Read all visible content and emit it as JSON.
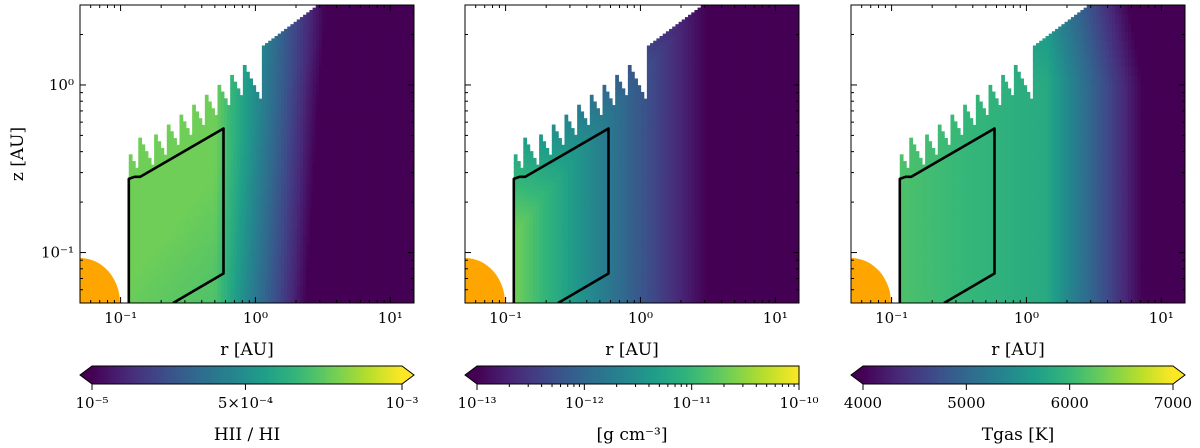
{
  "colors": {
    "star": "#ffa500",
    "contour": "#000000",
    "background": "#ffffff"
  },
  "chart_data": [
    {
      "type": "heatmap",
      "quantity": "ionization",
      "title": "",
      "xlabel": "r [AU]",
      "ylabel": "z [AU]",
      "xscale": "log",
      "yscale": "log",
      "xlim": [
        0.05,
        15
      ],
      "ylim": [
        0.05,
        3
      ],
      "xticks": [
        {
          "v": 0.1,
          "label": "10⁻¹"
        },
        {
          "v": 1,
          "label": "10⁰"
        },
        {
          "v": 10,
          "label": "10¹"
        }
      ],
      "yticks": [
        {
          "v": 0.1,
          "label": "10⁻¹"
        },
        {
          "v": 1,
          "label": "10⁰"
        }
      ],
      "colorbar": {
        "label": "HII / HI",
        "scale": "linear",
        "range": [
          1e-05,
          0.001
        ],
        "extend": "both",
        "ticks": [
          {
            "v": 1e-05,
            "label": "10⁻⁵"
          },
          {
            "v": 0.0005,
            "label": "5×10⁻⁴"
          },
          {
            "v": 0.001,
            "label": "10⁻³"
          }
        ]
      }
    },
    {
      "type": "heatmap",
      "quantity": "density",
      "title": "",
      "xlabel": "r [AU]",
      "ylabel": "",
      "xscale": "log",
      "yscale": "log",
      "xlim": [
        0.05,
        15
      ],
      "ylim": [
        0.05,
        3
      ],
      "xticks": [
        {
          "v": 0.1,
          "label": "10⁻¹"
        },
        {
          "v": 1,
          "label": "10⁰"
        },
        {
          "v": 10,
          "label": "10¹"
        }
      ],
      "yticks": [],
      "colorbar": {
        "label": "[g cm⁻³]",
        "scale": "log",
        "range": [
          1e-13,
          1e-10
        ],
        "extend": "min",
        "ticks": [
          {
            "v": 1e-13,
            "label": "10⁻¹³"
          },
          {
            "v": 1e-12,
            "label": "10⁻¹²"
          },
          {
            "v": 1e-11,
            "label": "10⁻¹¹"
          },
          {
            "v": 1e-10,
            "label": "10⁻¹⁰"
          }
        ]
      }
    },
    {
      "type": "heatmap",
      "quantity": "temperature",
      "title": "",
      "xlabel": "r [AU]",
      "ylabel": "",
      "xscale": "log",
      "yscale": "log",
      "xlim": [
        0.05,
        15
      ],
      "ylim": [
        0.05,
        3
      ],
      "xticks": [
        {
          "v": 0.1,
          "label": "10⁻¹"
        },
        {
          "v": 1,
          "label": "10⁰"
        },
        {
          "v": 10,
          "label": "10¹"
        }
      ],
      "yticks": [],
      "colorbar": {
        "label": "Tgas [K]",
        "scale": "linear",
        "range": [
          4000,
          7000
        ],
        "extend": "both",
        "ticks": [
          {
            "v": 4000,
            "label": "4000"
          },
          {
            "v": 5000,
            "label": "5000"
          },
          {
            "v": 6000,
            "label": "6000"
          },
          {
            "v": 7000,
            "label": "7000"
          }
        ]
      }
    }
  ]
}
